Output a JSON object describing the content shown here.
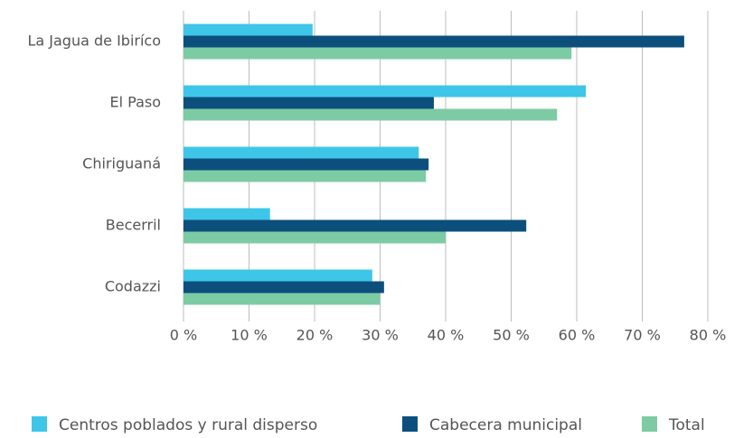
{
  "chart_data": {
    "type": "barh",
    "categories": [
      "La Jagua de Ibiríco",
      "El Paso",
      "Chiriguaná",
      "Becerril",
      "Codazzi"
    ],
    "series": [
      {
        "name": "Centros poblados y rural disperso",
        "color": "#3ec6e8",
        "values": [
          19.7,
          61.4,
          35.9,
          13.2,
          28.8
        ]
      },
      {
        "name": "Cabecera municipal",
        "color": "#0d4f7c",
        "values": [
          76.4,
          38.2,
          37.4,
          52.3,
          30.6
        ]
      },
      {
        "name": "Total",
        "color": "#7dcba4",
        "values": [
          59.2,
          57,
          37,
          40,
          30
        ]
      }
    ],
    "xlim": [
      0,
      80
    ],
    "xticks": [
      {
        "value": 0,
        "label": "0 %"
      },
      {
        "value": 10,
        "label": "10 %"
      },
      {
        "value": 20,
        "label": "20 %"
      },
      {
        "value": 30,
        "label": "30 %"
      },
      {
        "value": 40,
        "label": "40 %"
      },
      {
        "value": 50,
        "label": "50 %"
      },
      {
        "value": 60,
        "label": "60 %"
      },
      {
        "value": 70,
        "label": "70 %"
      },
      {
        "value": 80,
        "label": "80 %"
      }
    ],
    "grid": true,
    "legend": "bottom"
  }
}
